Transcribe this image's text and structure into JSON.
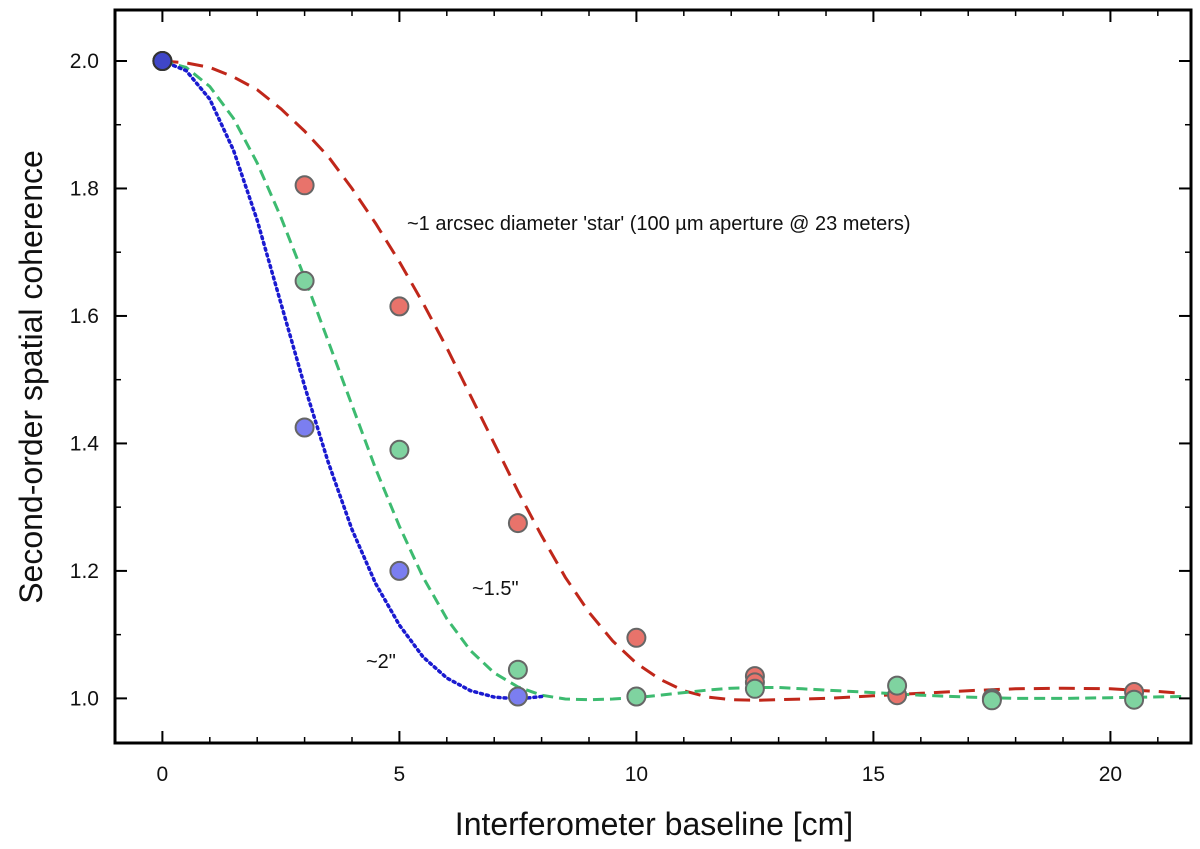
{
  "chart_data": {
    "type": "scatter",
    "title": "",
    "xlabel": "Interferometer baseline [cm]",
    "ylabel": "Second-order spatial coherence",
    "xlim": [
      -1,
      21.7
    ],
    "ylim": [
      0.93,
      2.08
    ],
    "x_ticks": [
      0,
      5,
      10,
      15,
      20
    ],
    "x_tick_labels": [
      "0",
      "5",
      "10",
      "15",
      "20"
    ],
    "y_ticks": [
      1.0,
      1.2,
      1.4,
      1.6,
      1.8,
      2.0
    ],
    "y_tick_labels": [
      "1.0",
      "1.2",
      "1.4",
      "1.6",
      "1.8",
      "2.0"
    ],
    "grid": false,
    "annotations": [
      {
        "text": "~1 arcsec diameter 'star' (100 µm aperture @ 23 meters)",
        "x": 5.4,
        "y": 1.74
      },
      {
        "text": "~1.5\"",
        "x": 6.6,
        "y": 1.155
      },
      {
        "text": "~2\"",
        "x": 4.3,
        "y": 1.075
      }
    ],
    "series": [
      {
        "name": "~1 arcsec",
        "color": "#e8736b",
        "line_color": "#c0271a",
        "line_style": "long-dash",
        "points": [
          [
            0,
            2.0
          ],
          [
            3.0,
            1.805
          ],
          [
            5.0,
            1.615
          ],
          [
            7.5,
            1.275
          ],
          [
            10.0,
            1.095
          ],
          [
            12.5,
            1.035
          ],
          [
            12.5,
            1.025
          ],
          [
            15.5,
            1.005
          ],
          [
            17.5,
            1.0
          ],
          [
            20.5,
            1.01
          ]
        ],
        "curve": [
          [
            0,
            2.0
          ],
          [
            0.5,
            1.997
          ],
          [
            1,
            1.99
          ],
          [
            1.5,
            1.975
          ],
          [
            2,
            1.955
          ],
          [
            2.5,
            1.925
          ],
          [
            3,
            1.89
          ],
          [
            3.5,
            1.85
          ],
          [
            4,
            1.8
          ],
          [
            4.5,
            1.745
          ],
          [
            5,
            1.685
          ],
          [
            5.5,
            1.62
          ],
          [
            6,
            1.55
          ],
          [
            6.5,
            1.475
          ],
          [
            7,
            1.4
          ],
          [
            7.5,
            1.325
          ],
          [
            8,
            1.255
          ],
          [
            8.5,
            1.19
          ],
          [
            9,
            1.135
          ],
          [
            9.5,
            1.09
          ],
          [
            10,
            1.055
          ],
          [
            10.5,
            1.03
          ],
          [
            11,
            1.012
          ],
          [
            11.5,
            1.002
          ],
          [
            12,
            0.998
          ],
          [
            12.5,
            0.997
          ],
          [
            13,
            0.998
          ],
          [
            14,
            1.0
          ],
          [
            15,
            1.004
          ],
          [
            16,
            1.008
          ],
          [
            17,
            1.012
          ],
          [
            18,
            1.015
          ],
          [
            19,
            1.016
          ],
          [
            20,
            1.015
          ],
          [
            21,
            1.011
          ],
          [
            21.5,
            1.008
          ]
        ]
      },
      {
        "name": "~1.5\"",
        "color": "#7fd3a0",
        "line_color": "#3dbb70",
        "line_style": "dash",
        "points": [
          [
            0,
            2.0
          ],
          [
            3.0,
            1.655
          ],
          [
            5.0,
            1.39
          ],
          [
            7.5,
            1.045
          ],
          [
            10.0,
            1.003
          ],
          [
            12.5,
            1.015
          ],
          [
            15.5,
            1.02
          ],
          [
            17.5,
            0.997
          ],
          [
            20.5,
            0.998
          ]
        ],
        "curve": [
          [
            0,
            2.0
          ],
          [
            0.5,
            1.99
          ],
          [
            1,
            1.96
          ],
          [
            1.5,
            1.91
          ],
          [
            2,
            1.84
          ],
          [
            2.5,
            1.755
          ],
          [
            3,
            1.66
          ],
          [
            3.5,
            1.56
          ],
          [
            4,
            1.46
          ],
          [
            4.5,
            1.36
          ],
          [
            5,
            1.27
          ],
          [
            5.5,
            1.19
          ],
          [
            6,
            1.125
          ],
          [
            6.5,
            1.075
          ],
          [
            7,
            1.04
          ],
          [
            7.5,
            1.018
          ],
          [
            8,
            1.005
          ],
          [
            8.5,
            0.999
          ],
          [
            9,
            0.998
          ],
          [
            9.5,
            0.999
          ],
          [
            10,
            1.001
          ],
          [
            10.5,
            1.005
          ],
          [
            11,
            1.009
          ],
          [
            11.5,
            1.013
          ],
          [
            12,
            1.016
          ],
          [
            12.5,
            1.017
          ],
          [
            13,
            1.017
          ],
          [
            13.5,
            1.015
          ],
          [
            14,
            1.013
          ],
          [
            15,
            1.009
          ],
          [
            16,
            1.005
          ],
          [
            17,
            1.002
          ],
          [
            18,
            1.0
          ],
          [
            19,
            1.0
          ],
          [
            20,
            1.001
          ],
          [
            21.5,
            1.003
          ]
        ]
      },
      {
        "name": "~2\"",
        "color": "#7b7ef0",
        "line_color": "#1a1ad0",
        "line_style": "dot",
        "points": [
          [
            0,
            2.0
          ],
          [
            3.0,
            1.425
          ],
          [
            5.0,
            1.2
          ],
          [
            7.5,
            1.003
          ]
        ],
        "curve": [
          [
            0,
            2.0
          ],
          [
            0.5,
            1.985
          ],
          [
            1,
            1.94
          ],
          [
            1.5,
            1.86
          ],
          [
            2,
            1.75
          ],
          [
            2.5,
            1.62
          ],
          [
            3,
            1.49
          ],
          [
            3.5,
            1.37
          ],
          [
            4,
            1.265
          ],
          [
            4.5,
            1.18
          ],
          [
            5,
            1.115
          ],
          [
            5.5,
            1.065
          ],
          [
            6,
            1.032
          ],
          [
            6.5,
            1.012
          ],
          [
            7,
            1.002
          ],
          [
            7.5,
            0.999
          ],
          [
            8,
            1.003
          ]
        ]
      }
    ]
  }
}
